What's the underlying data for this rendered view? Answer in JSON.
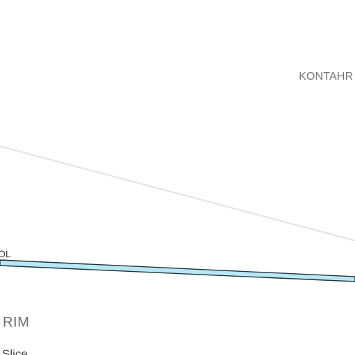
{
  "map": {
    "labels": {
      "kontahr": "KONTAHR",
      "ol": "OL",
      "rim": "RIM",
      "slice": "Slice"
    },
    "colors": {
      "background": "#ffffff",
      "minor_road": "#e3e3e3",
      "river_fill": "#b9e8f4",
      "river_outline": "#1f3340",
      "area_label": "#757575",
      "road_label": "#3c3c3c",
      "region_label": "#6d6d6d",
      "place_label": "#444444"
    }
  }
}
